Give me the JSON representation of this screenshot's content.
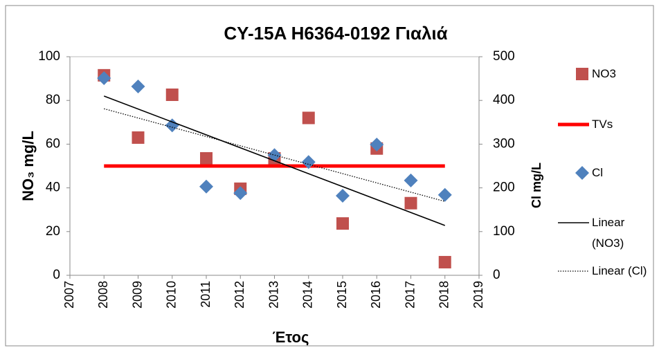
{
  "chart_data": {
    "type": "scatter",
    "title": "CY-15A H6364-0192 Γιαλιά",
    "x_label": "Έτος",
    "y_label": "NO₃ mg/L",
    "y2_label": "Cl mg/L",
    "xlim": [
      2007,
      2019
    ],
    "xticks": [
      2007,
      2008,
      2009,
      2010,
      2011,
      2012,
      2013,
      2014,
      2015,
      2016,
      2017,
      2018,
      2019
    ],
    "ylim": [
      0,
      100
    ],
    "yticks": [
      0,
      20,
      40,
      60,
      80,
      100
    ],
    "y2lim": [
      0,
      500
    ],
    "y2ticks": [
      0,
      100,
      200,
      300,
      400,
      500
    ],
    "series": [
      {
        "name": "NO3",
        "color": "#c0504d",
        "marker": "square",
        "line_style": null,
        "axis": "y",
        "x": [
          2008,
          2009,
          2010,
          2011,
          2012,
          2013,
          2014,
          2015,
          2016,
          2017,
          2018
        ],
        "values": [
          91.5,
          63,
          82.6,
          53.5,
          39.6,
          53.5,
          72,
          23.7,
          58,
          33,
          6
        ]
      },
      {
        "name": "TVs",
        "color": "#ff0000",
        "marker": null,
        "line_style": "thick",
        "axis": "y",
        "x": [
          2008,
          2018
        ],
        "values": [
          50,
          50
        ]
      },
      {
        "name": "Cl",
        "color": "#4f81bd",
        "marker": "diamond",
        "line_style": null,
        "axis": "y2",
        "x": [
          2008,
          2009,
          2010,
          2011,
          2012,
          2013,
          2014,
          2015,
          2016,
          2017,
          2018
        ],
        "values": [
          451,
          432,
          343,
          203,
          188,
          275,
          259,
          182,
          299,
          217,
          184
        ]
      },
      {
        "name": "Linear (NO3)",
        "color": "#000000",
        "marker": null,
        "line_style": "solid",
        "axis": "y",
        "x": [
          2008,
          2018
        ],
        "values": [
          82,
          22.8
        ]
      },
      {
        "name": "Linear (Cl)",
        "color": "#000000",
        "marker": null,
        "line_style": "dotted",
        "axis": "y2",
        "x": [
          2008,
          2018
        ],
        "values": [
          381,
          169
        ]
      }
    ]
  }
}
